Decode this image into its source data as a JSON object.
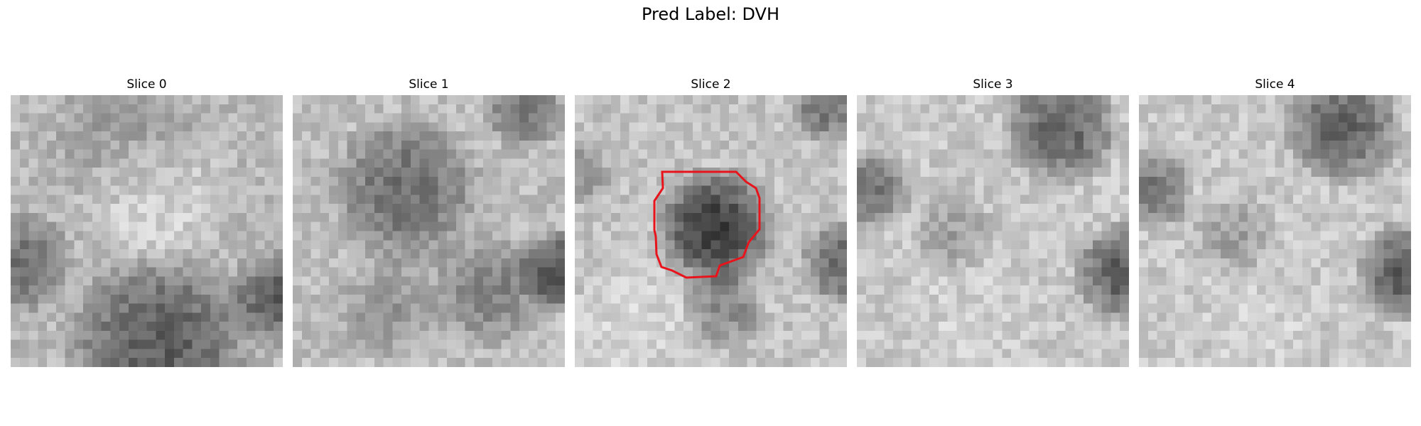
{
  "title": "Pred Label: DVH",
  "slices": [
    {
      "label": "Slice 0"
    },
    {
      "label": "Slice 1"
    },
    {
      "label": "Slice 2",
      "annotated": true
    },
    {
      "label": "Slice 3"
    },
    {
      "label": "Slice 4"
    }
  ],
  "colors": {
    "contour": "#e8141c",
    "background": "#ffffff"
  }
}
